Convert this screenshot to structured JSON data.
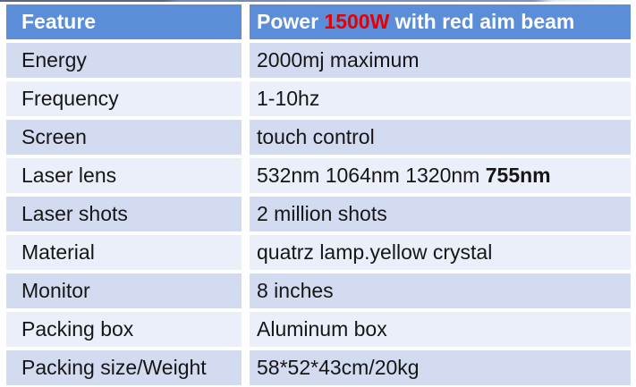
{
  "table": {
    "header": {
      "feature_label": "Feature",
      "value_prefix": "Power ",
      "value_highlight": "1500W",
      "value_suffix": " with red aim beam"
    },
    "rows": [
      {
        "feature": "Energy",
        "value": "2000mj maximum"
      },
      {
        "feature": "Frequency",
        "value": "1-10hz"
      },
      {
        "feature": "Screen",
        "value": "touch control"
      },
      {
        "feature": "Laser lens",
        "value": "532nm 1064nm 1320nm ",
        "value_bold": "755nm"
      },
      {
        "feature": "Laser shots",
        "value": "2 million shots"
      },
      {
        "feature": "Material",
        "value": "quatrz lamp.yellow crystal"
      },
      {
        "feature": "Monitor",
        "value": "8 inches"
      },
      {
        "feature": "Packing box",
        "value": "Aluminum box"
      },
      {
        "feature": "Packing size/Weight",
        "value": "58*52*43cm/20kg"
      }
    ],
    "colors": {
      "header_bg": "#5b8dd9",
      "header_text": "#ffffff",
      "row_dark": "#d2dbf0",
      "row_light": "#ebeffa",
      "highlight_red": "#e60000",
      "text": "#161616"
    }
  }
}
